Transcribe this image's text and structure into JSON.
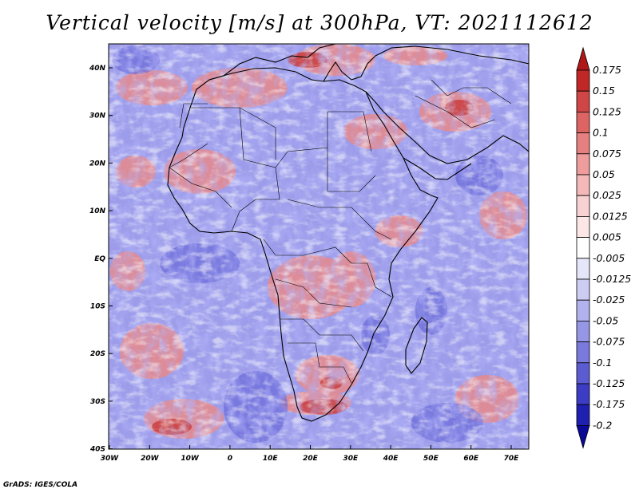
{
  "title": "Vertical velocity [m/s] at 300hPa, VT: 2021112612",
  "credit": "GrADS: IGES/COLA",
  "map": {
    "lat_labels": [
      "40N",
      "30N",
      "20N",
      "10N",
      "EQ",
      "10S",
      "20S",
      "30S",
      "40S"
    ],
    "lon_labels": [
      "30W",
      "20W",
      "10W",
      "0",
      "10E",
      "20E",
      "30E",
      "40E",
      "50E",
      "60E",
      "70E"
    ],
    "variable": "vertical velocity",
    "level": "300hPa",
    "units": "m/s",
    "valid_time": "2021112612",
    "region": "Africa",
    "colors": {
      "background": "#9a9ae8",
      "positive": "#e88a8a",
      "negative": "#7070e0",
      "coast": "#000000"
    }
  },
  "colorbar": {
    "levels": [
      "0.175",
      "0.15",
      "0.125",
      "0.1",
      "0.075",
      "0.05",
      "0.025",
      "0.0125",
      "0.005",
      "-0.005",
      "-0.0125",
      "-0.025",
      "-0.05",
      "-0.075",
      "-0.1",
      "-0.125",
      "-0.175",
      "-0.2"
    ],
    "colors": [
      "#b01818",
      "#c02828",
      "#d04646",
      "#de6464",
      "#e68080",
      "#ee9c9c",
      "#f4b8b8",
      "#f8d2d2",
      "#fce6e6",
      "#ffffff",
      "#e6e6fa",
      "#cdcdf4",
      "#b2b2ee",
      "#9696e6",
      "#7a7ade",
      "#5c5cd2",
      "#3c3cc4",
      "#2020b0",
      "#0a0a96"
    ]
  }
}
